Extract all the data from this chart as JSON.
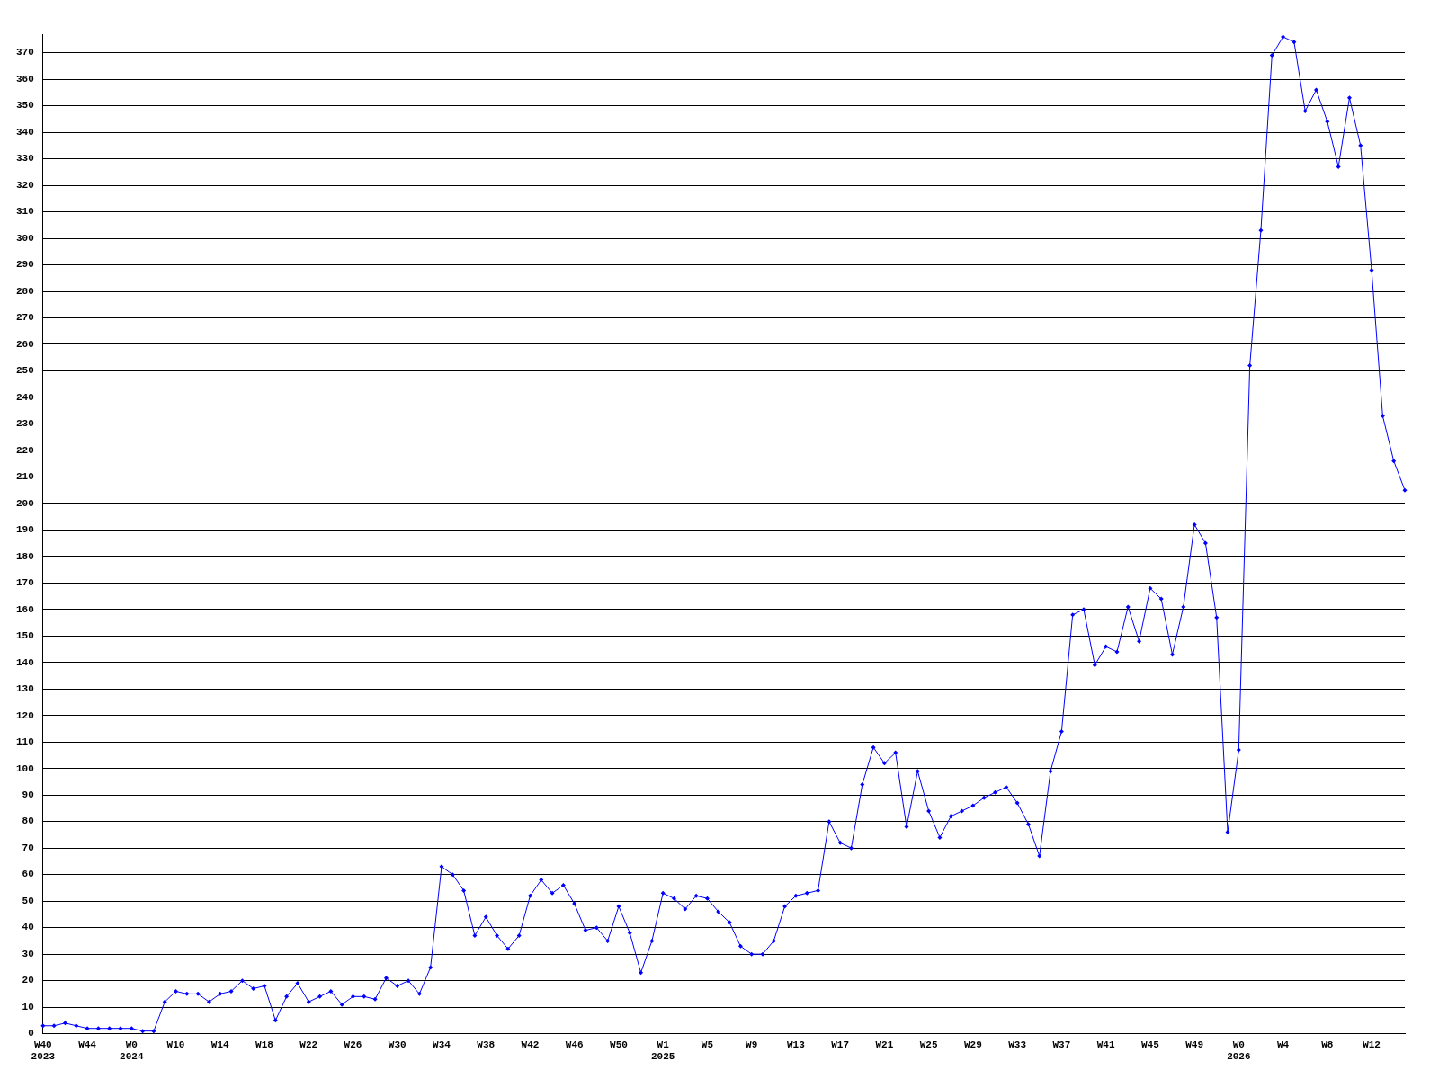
{
  "chart_data": {
    "type": "line",
    "categories": [
      "W40\n2023",
      null,
      null,
      null,
      "W44",
      null,
      null,
      null,
      "W0\n2024",
      null,
      null,
      null,
      "W10",
      null,
      null,
      null,
      "W14",
      null,
      null,
      null,
      "W18",
      null,
      null,
      null,
      "W22",
      null,
      null,
      null,
      "W26",
      null,
      null,
      null,
      "W30",
      null,
      null,
      null,
      "W34",
      null,
      null,
      null,
      "W38",
      null,
      null,
      null,
      "W42",
      null,
      null,
      null,
      "W46",
      null,
      null,
      null,
      "W50",
      null,
      null,
      null,
      "W1\n2025",
      null,
      null,
      null,
      "W5",
      null,
      null,
      null,
      "W9",
      null,
      null,
      null,
      "W13",
      null,
      null,
      null,
      "W17",
      null,
      null,
      null,
      "W21",
      null,
      null,
      null,
      "W25",
      null,
      null,
      null,
      "W29",
      null,
      null,
      null,
      "W33",
      null,
      null,
      null,
      "W37",
      null,
      null,
      null,
      "W41",
      null,
      null,
      null,
      "W45",
      null,
      null,
      null,
      "W49",
      null,
      null,
      null,
      "W0\n2026",
      null,
      null,
      null,
      "W4",
      null,
      null,
      null,
      "W8",
      null,
      null,
      null,
      "W12",
      null,
      null,
      null
    ],
    "series": [
      {
        "color": "#0000ff",
        "values": [
          3,
          3,
          4,
          3,
          2,
          2,
          2,
          2,
          2,
          1,
          1,
          12,
          16,
          15,
          15,
          12,
          15,
          16,
          20,
          17,
          18,
          5,
          14,
          19,
          12,
          14,
          16,
          11,
          14,
          14,
          13,
          21,
          18,
          20,
          15,
          25,
          63,
          60,
          54,
          37,
          44,
          37,
          32,
          37,
          52,
          58,
          53,
          56,
          49,
          39,
          40,
          35,
          48,
          38,
          23,
          35,
          53,
          51,
          47,
          52,
          51,
          46,
          42,
          33,
          30,
          30,
          35,
          48,
          52,
          53,
          54,
          80,
          72,
          70,
          94,
          108,
          102,
          106,
          78,
          99,
          84,
          74,
          82,
          84,
          86,
          89,
          91,
          93,
          87,
          79,
          67,
          99,
          114,
          158,
          160,
          139,
          146,
          144,
          161,
          148,
          168,
          164,
          143,
          161,
          192,
          185,
          157,
          76,
          107,
          252,
          303,
          369,
          376,
          374,
          348,
          356,
          344,
          327,
          353,
          335,
          288,
          233,
          216,
          205
        ]
      }
    ],
    "ylim": [
      0,
      377
    ],
    "yticks": [
      0,
      10,
      20,
      30,
      40,
      50,
      60,
      70,
      80,
      90,
      100,
      110,
      120,
      130,
      140,
      150,
      160,
      170,
      180,
      190,
      200,
      210,
      220,
      230,
      240,
      250,
      260,
      270,
      280,
      290,
      300,
      310,
      320,
      330,
      340,
      350,
      360,
      370
    ],
    "grid": "y",
    "legend": false,
    "marker": "diamond",
    "line_style": "solid"
  }
}
